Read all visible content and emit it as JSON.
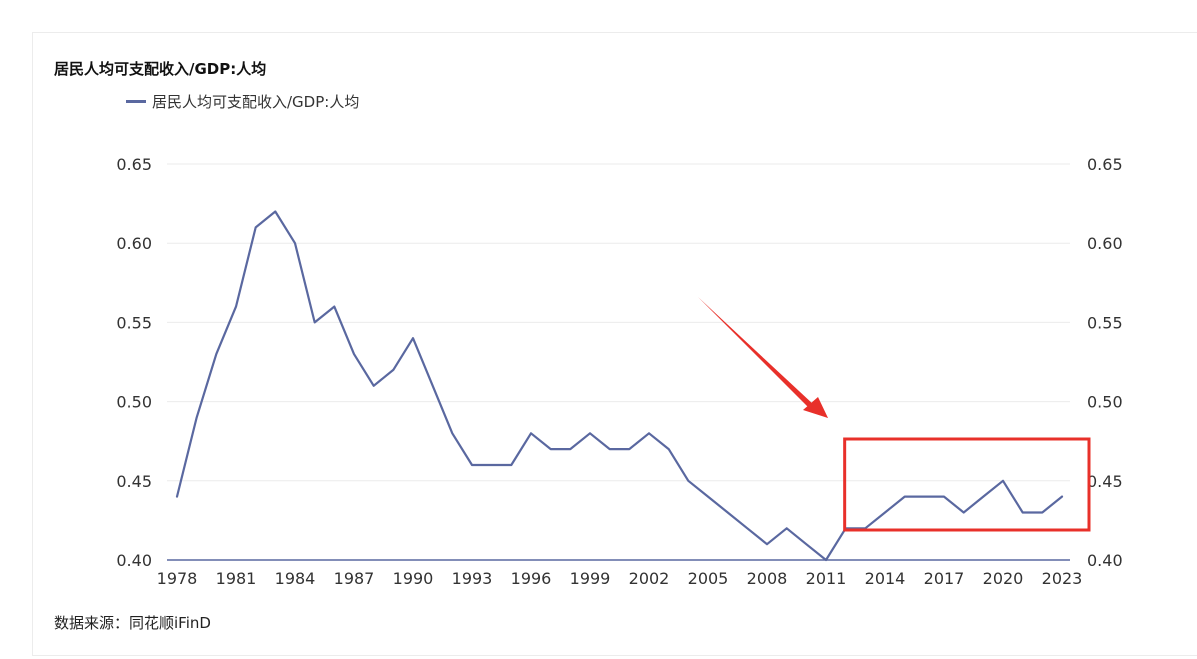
{
  "title": "居民人均可支配收入/GDP:人均",
  "legend": {
    "label": "居民人均可支配收入/GDP:人均",
    "color": "#5a68a0"
  },
  "source": "数据来源：同花顺iFinD",
  "colors": {
    "line": "#5a68a0",
    "grid": "#ebebeb",
    "axis": "#5a68a0",
    "annotation": "#e8302a"
  },
  "annotation": {
    "type": "red-box-and-arrow",
    "highlight_years": [
      2012,
      2023
    ]
  },
  "chart_data": {
    "type": "line",
    "title": "居民人均可支配收入/GDP:人均",
    "x": [
      1978,
      1979,
      1980,
      1981,
      1982,
      1983,
      1984,
      1985,
      1986,
      1987,
      1988,
      1989,
      1990,
      1991,
      1992,
      1993,
      1994,
      1995,
      1996,
      1997,
      1998,
      1999,
      2000,
      2001,
      2002,
      2003,
      2004,
      2005,
      2006,
      2007,
      2008,
      2009,
      2010,
      2011,
      2012,
      2013,
      2014,
      2015,
      2016,
      2017,
      2018,
      2019,
      2020,
      2021,
      2022,
      2023
    ],
    "series": [
      {
        "name": "居民人均可支配收入/GDP:人均",
        "values": [
          0.44,
          0.49,
          0.53,
          0.56,
          0.61,
          0.62,
          0.6,
          0.55,
          0.56,
          0.53,
          0.51,
          0.52,
          0.54,
          0.51,
          0.48,
          0.46,
          0.46,
          0.46,
          0.48,
          0.47,
          0.47,
          0.48,
          0.47,
          0.47,
          0.48,
          0.47,
          0.45,
          0.44,
          0.43,
          0.42,
          0.41,
          0.42,
          0.41,
          0.4,
          0.42,
          0.42,
          0.43,
          0.44,
          0.44,
          0.44,
          0.43,
          0.44,
          0.45,
          0.43,
          0.43,
          0.44
        ]
      }
    ],
    "x_tick_labels": [
      "1978",
      "1981",
      "1984",
      "1987",
      "1990",
      "1993",
      "1996",
      "1999",
      "2002",
      "2005",
      "2008",
      "2011",
      "2014",
      "2017",
      "2020",
      "2023"
    ],
    "y_tick_labels": [
      "0.40",
      "0.45",
      "0.50",
      "0.55",
      "0.60",
      "0.65"
    ],
    "ylim": [
      0.4,
      0.65
    ],
    "xlim": [
      1978,
      2023
    ],
    "grid": true,
    "dual_y_axis": true,
    "legend_position": "top-left"
  }
}
